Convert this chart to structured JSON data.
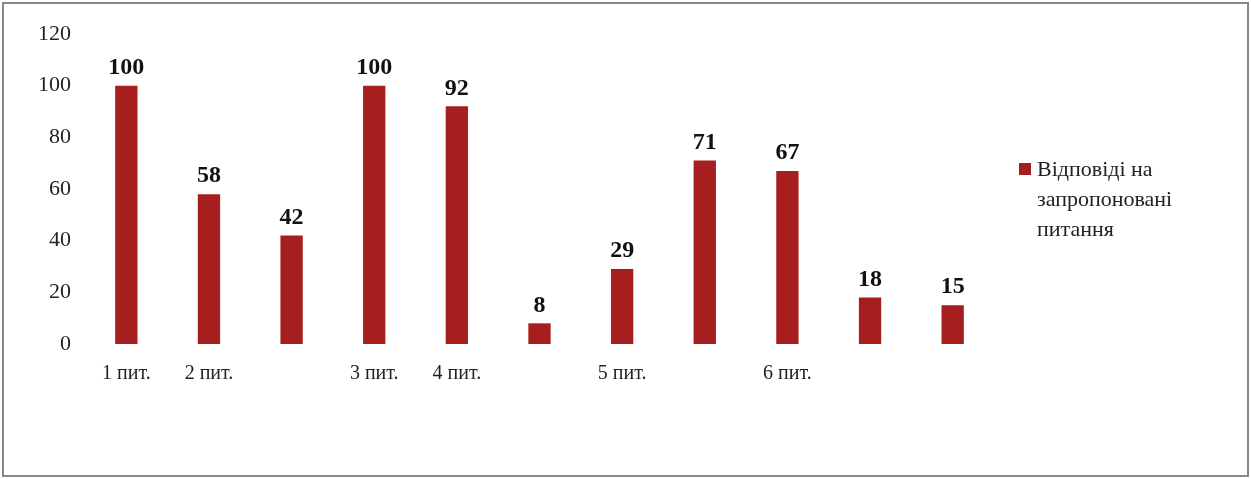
{
  "chart_data": {
    "type": "bar",
    "categories": [
      "1 пит.",
      "2 пит.",
      null,
      "3 пит.",
      "4 пит.",
      null,
      "5 пит.",
      null,
      "6 пит.",
      null,
      null
    ],
    "series": [
      {
        "name": "Відповіді на запропоновані питання",
        "color": "#a61e1e",
        "values": [
          100,
          58,
          42,
          100,
          92,
          8,
          29,
          71,
          67,
          18,
          15
        ]
      }
    ],
    "ylim": [
      0,
      120
    ],
    "yticks": [
      0,
      20,
      40,
      60,
      80,
      100,
      120
    ],
    "grid": false,
    "legend": "right",
    "data_labels": true
  }
}
